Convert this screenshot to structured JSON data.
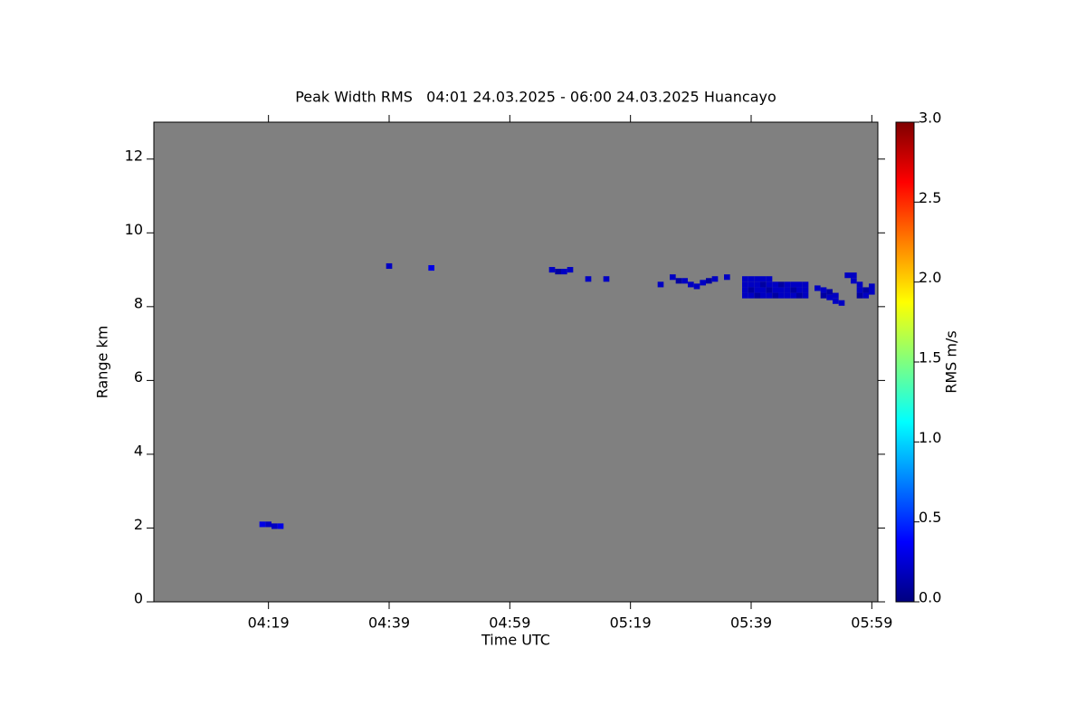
{
  "chart_data": {
    "type": "heatmap",
    "title": "Peak Width RMS   04:01 24.03.2025 - 06:00 24.03.2025 Huancayo",
    "xlabel": "Time UTC",
    "ylabel": "Range km",
    "colorbar_label": "RMS m/s",
    "colormap": "jet",
    "background": "#808080",
    "xlim": [
      "04:00",
      "06:00"
    ],
    "xticks": [
      "04:19",
      "04:39",
      "04:59",
      "05:19",
      "05:39",
      "05:59"
    ],
    "ylim": [
      0,
      13
    ],
    "yticks": [
      0,
      2,
      4,
      6,
      8,
      10,
      12
    ],
    "zlim": [
      0,
      3
    ],
    "zticks": [
      {
        "value": 0,
        "label": "0.0"
      },
      {
        "value": 0.5,
        "label": "0.5"
      },
      {
        "value": 1,
        "label": "1.0"
      },
      {
        "value": 1.5,
        "label": "1.5"
      },
      {
        "value": 2,
        "label": "2.0"
      },
      {
        "value": 2.5,
        "label": "2.5"
      },
      {
        "value": 3,
        "label": "3.0"
      }
    ],
    "x": [
      "04:18",
      "04:19",
      "04:20",
      "04:21",
      "04:39",
      "04:46",
      "05:06",
      "05:07",
      "05:08",
      "05:09",
      "05:12",
      "05:15",
      "05:24",
      "05:26",
      "05:27",
      "05:28",
      "05:29",
      "05:30",
      "05:31",
      "05:32",
      "05:33",
      "05:35",
      "05:38",
      "05:39",
      "05:40",
      "05:41",
      "05:42",
      "05:43",
      "05:44",
      "05:45",
      "05:46",
      "05:47",
      "05:48",
      "05:38",
      "05:39",
      "05:40",
      "05:41",
      "05:42",
      "05:43",
      "05:44",
      "05:45",
      "05:46",
      "05:47",
      "05:48",
      "05:38",
      "05:39",
      "05:40",
      "05:41",
      "05:42",
      "05:43",
      "05:44",
      "05:45",
      "05:46",
      "05:47",
      "05:48",
      "05:38",
      "05:39",
      "05:40",
      "05:41",
      "05:42",
      "05:50",
      "05:51",
      "05:51",
      "05:52",
      "05:52",
      "05:53",
      "05:53",
      "05:54",
      "05:55",
      "05:56",
      "05:56",
      "05:57",
      "05:57",
      "05:57",
      "05:58",
      "05:58",
      "05:59",
      "05:59"
    ],
    "y": [
      2.1,
      2.1,
      2.05,
      2.05,
      9.1,
      9.05,
      9.0,
      8.95,
      8.95,
      9.0,
      8.75,
      8.75,
      8.6,
      8.8,
      8.7,
      8.7,
      8.6,
      8.55,
      8.65,
      8.7,
      8.75,
      8.8,
      8.3,
      8.3,
      8.3,
      8.3,
      8.3,
      8.3,
      8.3,
      8.3,
      8.3,
      8.3,
      8.3,
      8.45,
      8.45,
      8.45,
      8.45,
      8.45,
      8.45,
      8.45,
      8.45,
      8.45,
      8.45,
      8.45,
      8.6,
      8.6,
      8.6,
      8.6,
      8.6,
      8.6,
      8.6,
      8.6,
      8.6,
      8.6,
      8.6,
      8.75,
      8.75,
      8.75,
      8.75,
      8.75,
      8.5,
      8.3,
      8.45,
      8.25,
      8.4,
      8.15,
      8.3,
      8.1,
      8.85,
      8.85,
      8.7,
      8.3,
      8.45,
      8.6,
      8.3,
      8.45,
      8.4,
      8.55
    ],
    "values": [
      0.3,
      0.2,
      0.2,
      0.3,
      0.2,
      0.3,
      0.2,
      0.1,
      0.2,
      0.2,
      0.2,
      0.2,
      0.2,
      0.2,
      0.1,
      0.2,
      0.2,
      0.2,
      0.2,
      0.1,
      0.2,
      0.2,
      0.2,
      0.2,
      0.1,
      0.2,
      0.2,
      0.1,
      0.2,
      0.2,
      0.2,
      0.1,
      0.2,
      0.2,
      0.1,
      0.2,
      0.2,
      0.1,
      0.2,
      0.2,
      0.2,
      0.1,
      0.2,
      0.2,
      0.2,
      0.2,
      0.2,
      0.1,
      0.2,
      0.2,
      0.1,
      0.2,
      0.2,
      0.2,
      0.2,
      0.2,
      0.2,
      0.2,
      0.2,
      0.2,
      0.2,
      0.1,
      0.2,
      0.2,
      0.1,
      0.2,
      0.2,
      0.2,
      0.2,
      0.2,
      0.2,
      0.1,
      0.2,
      0.2,
      0.2,
      0.1,
      0.2,
      0.2
    ]
  }
}
